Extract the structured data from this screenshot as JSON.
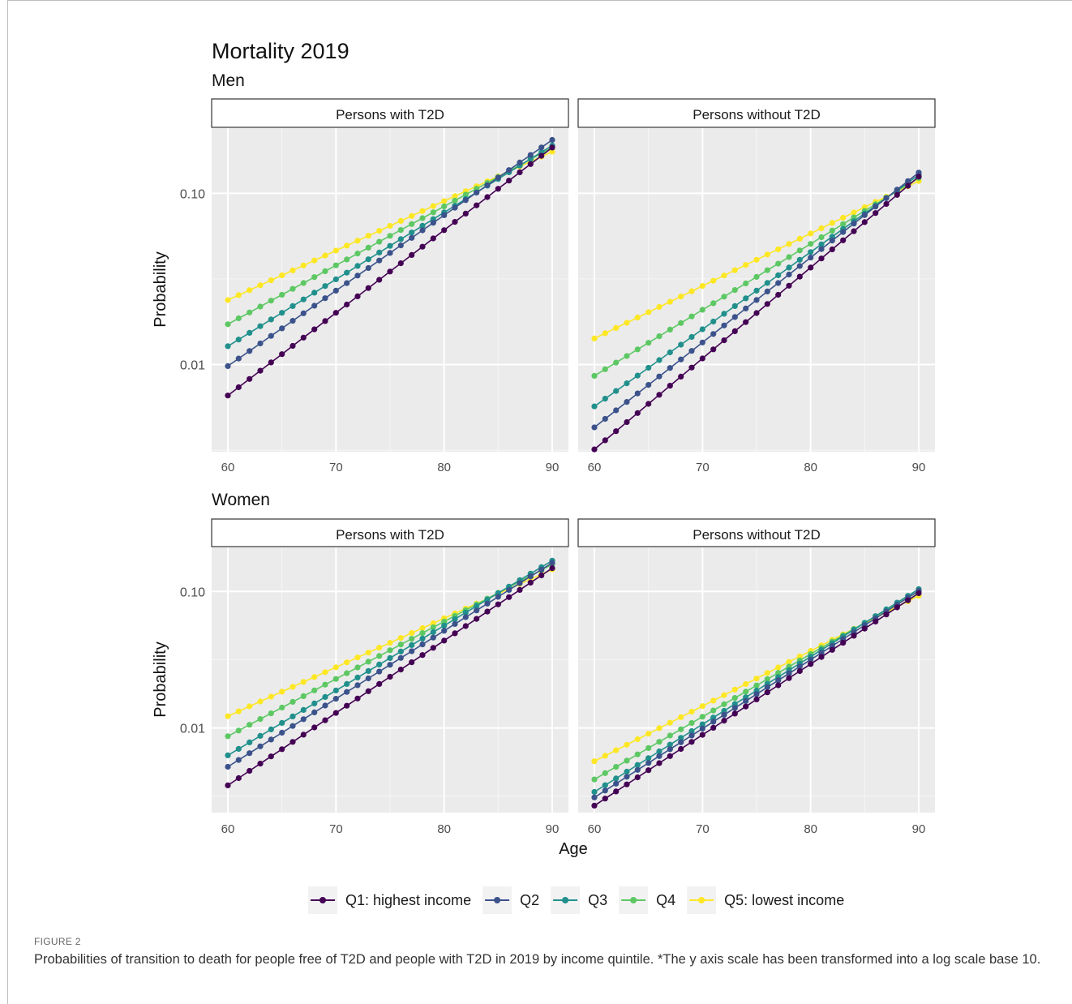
{
  "figure": {
    "title": "Mortality 2019",
    "label": "FIGURE 2",
    "caption": "Probabilities of transition to death for people free of T2D and people with T2D in 2019 by income quintile. *The y axis scale has been transformed into a log scale base 10."
  },
  "chart_data": {
    "type": "line",
    "title": "Mortality 2019",
    "xlabel": "Age",
    "ylabel": "Probability",
    "y_scale": "log10",
    "x_range": [
      60,
      90
    ],
    "x_ticks": [
      60,
      70,
      80,
      90
    ],
    "grid": true,
    "legend_position": "bottom",
    "legend": [
      {
        "name": "Q1: highest income",
        "color": "#440154"
      },
      {
        "name": "Q2",
        "color": "#3b528b"
      },
      {
        "name": "Q3",
        "color": "#21908c"
      },
      {
        "name": "Q4",
        "color": "#5dc863"
      },
      {
        "name": "Q5: lowest income",
        "color": "#fde725"
      }
    ],
    "rows": [
      {
        "label": "Men",
        "ylim": [
          0.0031,
          0.24
        ],
        "y_ticks": [
          {
            "value": 0.01,
            "label": "0.01"
          },
          {
            "value": 0.1,
            "label": "0.10"
          }
        ],
        "panels": [
          {
            "label": "Persons with T2D",
            "endpoints": [
              {
                "series": "Q1: highest income",
                "age60": 0.0066,
                "age90": 0.185
              },
              {
                "series": "Q2",
                "age60": 0.0098,
                "age90": 0.205
              },
              {
                "series": "Q3",
                "age60": 0.0128,
                "age90": 0.19
              },
              {
                "series": "Q4",
                "age60": 0.0172,
                "age90": 0.185
              },
              {
                "series": "Q5: lowest income",
                "age60": 0.0238,
                "age90": 0.175
              }
            ]
          },
          {
            "label": "Persons without T2D",
            "endpoints": [
              {
                "series": "Q1: highest income",
                "age60": 0.0032,
                "age90": 0.125
              },
              {
                "series": "Q2",
                "age60": 0.0043,
                "age90": 0.132
              },
              {
                "series": "Q3",
                "age60": 0.0057,
                "age90": 0.128
              },
              {
                "series": "Q4",
                "age60": 0.0086,
                "age90": 0.123
              },
              {
                "series": "Q5: lowest income",
                "age60": 0.0142,
                "age90": 0.118
              }
            ]
          }
        ]
      },
      {
        "label": "Women",
        "ylim": [
          0.0024,
          0.21
        ],
        "y_ticks": [
          {
            "value": 0.01,
            "label": "0.01"
          },
          {
            "value": 0.1,
            "label": "0.10"
          }
        ],
        "panels": [
          {
            "label": "Persons with T2D",
            "endpoints": [
              {
                "series": "Q1: highest income",
                "age60": 0.0038,
                "age90": 0.148
              },
              {
                "series": "Q2",
                "age60": 0.0052,
                "age90": 0.162
              },
              {
                "series": "Q3",
                "age60": 0.0063,
                "age90": 0.168
              },
              {
                "series": "Q4",
                "age60": 0.0087,
                "age90": 0.158
              },
              {
                "series": "Q5: lowest income",
                "age60": 0.0122,
                "age90": 0.145
              }
            ]
          },
          {
            "label": "Persons without T2D",
            "endpoints": [
              {
                "series": "Q1: highest income",
                "age60": 0.0027,
                "age90": 0.097
              },
              {
                "series": "Q2",
                "age60": 0.0031,
                "age90": 0.101
              },
              {
                "series": "Q3",
                "age60": 0.0034,
                "age90": 0.104
              },
              {
                "series": "Q4",
                "age60": 0.0042,
                "age90": 0.1
              },
              {
                "series": "Q5: lowest income",
                "age60": 0.0057,
                "age90": 0.093
              }
            ]
          }
        ]
      }
    ]
  }
}
